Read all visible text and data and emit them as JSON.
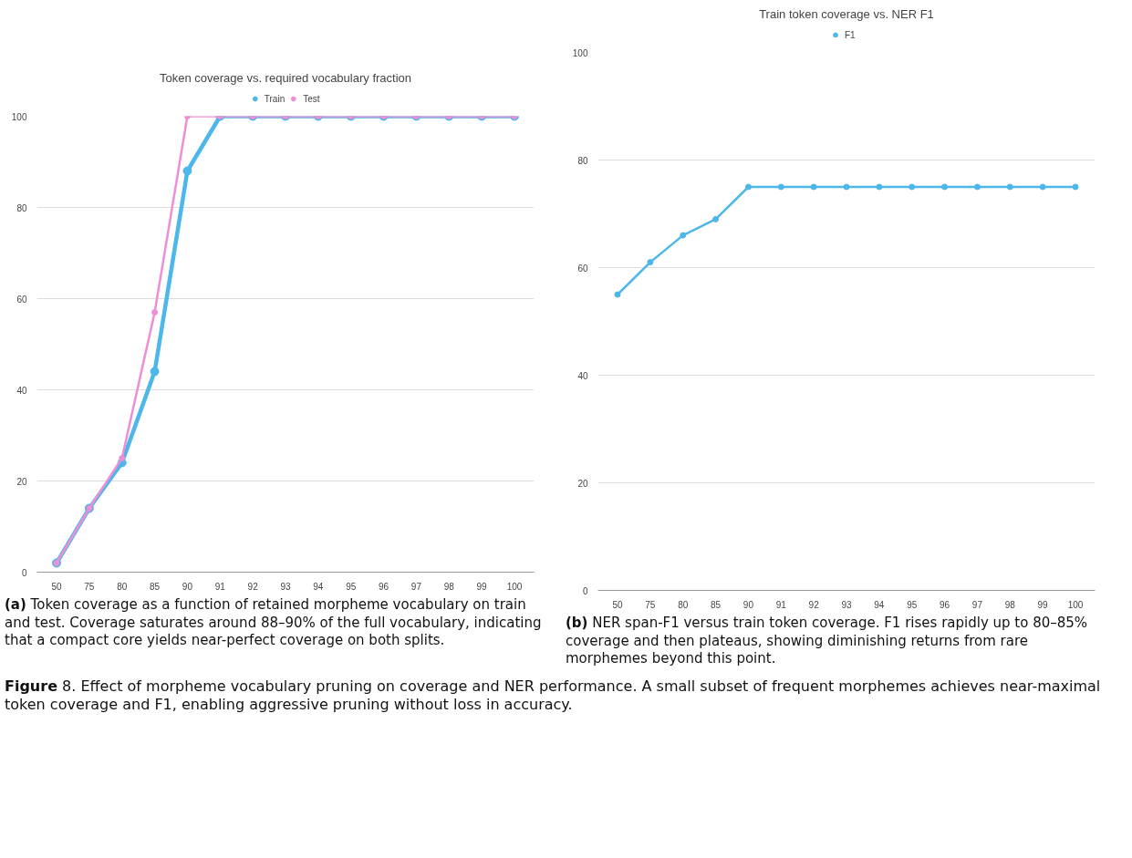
{
  "chart_data": [
    {
      "type": "line",
      "title": "Token coverage vs. required vocabulary fraction",
      "categories": [
        "50",
        "75",
        "80",
        "85",
        "90",
        "91",
        "92",
        "93",
        "94",
        "95",
        "96",
        "97",
        "98",
        "99",
        "100"
      ],
      "series": [
        {
          "name": "Train",
          "color": "#4db6ea",
          "values": [
            2,
            14,
            24,
            44,
            88,
            100,
            100,
            100,
            100,
            100,
            100,
            100,
            100,
            100,
            100
          ]
        },
        {
          "name": "Test",
          "color": "#ee8ed6",
          "values": [
            2,
            14,
            25,
            57,
            100,
            100,
            100,
            100,
            100,
            100,
            100,
            100,
            100,
            100,
            100
          ]
        }
      ],
      "ylim": [
        0,
        100
      ],
      "yticks": [
        0,
        20,
        40,
        60,
        80,
        100
      ],
      "grid": "y",
      "legend": "top",
      "marker": "circle",
      "annotations": [
        "(a) Token coverage as a function of retained morpheme vocabulary on train and test.  Coverage saturates around 88–90% of the full vocabulary, indicating that a compact core yields near-perfect coverage on both splits."
      ]
    },
    {
      "type": "line",
      "title": "Train token coverage vs. NER F1",
      "categories": [
        "50",
        "75",
        "80",
        "85",
        "90",
        "91",
        "92",
        "93",
        "94",
        "95",
        "96",
        "97",
        "98",
        "99",
        "100"
      ],
      "series": [
        {
          "name": "F1",
          "color": "#4db6ea",
          "values": [
            55,
            61,
            66,
            69,
            75,
            75,
            75,
            75,
            75,
            75,
            75,
            75,
            75,
            75,
            75
          ]
        }
      ],
      "ylim": [
        0,
        100
      ],
      "yticks": [
        0,
        20,
        40,
        60,
        80,
        100
      ],
      "grid": "y",
      "legend": "top",
      "marker": "circle",
      "annotations": [
        "(b) NER span-F1 versus train token coverage. F1 rises rapidly up to 80–85% coverage and then plateaus, showing diminishing returns from rare morphemes beyond this point.",
        "Figure 8. Effect of morpheme vocabulary pruning on coverage and NER performance. A small subset of frequent morphemes achieves near-maximal token coverage and F1, enabling aggressive pruning without loss in accuracy."
      ]
    }
  ]
}
